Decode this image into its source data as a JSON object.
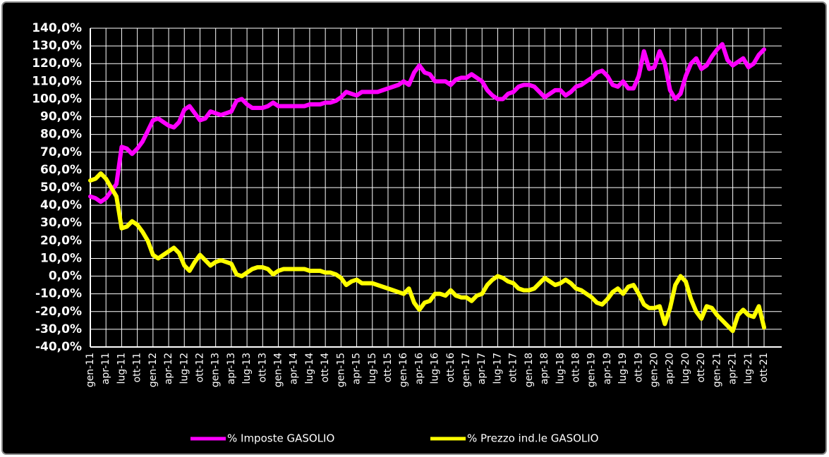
{
  "chart_data": {
    "type": "line",
    "categories": [
      "gen-11",
      null,
      null,
      "apr-11",
      null,
      null,
      "lug-11",
      null,
      null,
      "ott-11",
      null,
      null,
      "gen-12",
      null,
      null,
      "apr-12",
      null,
      null,
      "lug-12",
      null,
      null,
      "ott-12",
      null,
      null,
      "gen-13",
      null,
      null,
      "apr-13",
      null,
      null,
      "lug-13",
      null,
      null,
      "ott-13",
      null,
      null,
      "gen-14",
      null,
      null,
      "apr-14",
      null,
      null,
      "lug-14",
      null,
      null,
      "ott-14",
      null,
      null,
      "gen-15",
      null,
      null,
      "apr-15",
      null,
      null,
      "lug-15",
      null,
      null,
      "ott-15",
      null,
      null,
      "gen-16",
      null,
      null,
      "apr-16",
      null,
      null,
      "lug-16",
      null,
      null,
      "ott-16",
      null,
      null,
      "gen-17",
      null,
      null,
      "apr-17",
      null,
      null,
      "lug-17",
      null,
      null,
      "ott-17",
      null,
      null,
      "gen-18",
      null,
      null,
      "apr-18",
      null,
      null,
      "lug-18",
      null,
      null,
      "ott-18",
      null,
      null,
      "gen-19",
      null,
      null,
      "apr-19",
      null,
      null,
      "lug-19",
      null,
      null,
      "ott-19",
      null,
      null,
      "gen-20",
      null,
      null,
      "apr-20",
      null,
      null,
      "lug-20",
      null,
      null,
      "ott-20",
      null,
      null,
      "gen-21",
      null,
      null,
      "apr-21",
      null,
      null,
      "lug-21",
      null,
      null,
      "ott-21"
    ],
    "series": [
      {
        "name": "% Imposte GASOLIO",
        "color": "#ff00ff",
        "values": [
          45,
          44,
          42,
          44,
          48,
          52,
          73,
          72,
          69,
          72,
          76,
          82,
          88,
          89,
          87,
          85,
          84,
          87,
          94,
          96,
          92,
          88,
          89,
          93,
          92,
          91,
          92,
          93,
          99,
          100,
          97,
          95,
          95,
          95,
          96,
          98,
          96,
          96,
          96,
          96,
          96,
          96,
          97,
          97,
          97,
          98,
          98,
          99,
          101,
          104,
          103,
          102,
          104,
          104,
          104,
          104,
          105,
          106,
          107,
          108,
          110,
          108,
          115,
          119,
          115,
          114,
          110,
          110,
          110,
          108,
          111,
          112,
          112,
          114,
          112,
          110,
          105,
          102,
          100,
          100,
          103,
          104,
          107,
          108,
          108,
          107,
          104,
          101,
          103,
          105,
          105,
          102,
          104,
          107,
          108,
          110,
          112,
          115,
          116,
          113,
          108,
          107,
          110,
          106,
          106,
          113,
          127,
          117,
          118,
          127,
          120,
          105,
          100,
          103,
          113,
          120,
          123,
          117,
          119,
          124,
          128,
          131,
          122,
          119,
          121,
          123,
          118,
          120,
          125,
          128
        ]
      },
      {
        "name": "% Prezzo ind.le GASOLIO",
        "color": "#ffff00",
        "values": [
          54,
          55,
          58,
          55,
          50,
          45,
          27,
          28,
          31,
          29,
          25,
          20,
          12,
          10,
          12,
          14,
          16,
          13,
          6,
          3,
          8,
          12,
          9,
          6,
          8,
          9,
          8,
          7,
          1,
          0,
          2,
          4,
          5,
          5,
          4,
          1,
          3,
          4,
          4,
          4,
          4,
          4,
          3,
          3,
          3,
          2,
          2,
          1,
          -1,
          -5,
          -3,
          -2,
          -4,
          -4,
          -4,
          -5,
          -6,
          -7,
          -8,
          -9,
          -10,
          -7,
          -15,
          -19,
          -15,
          -14,
          -10,
          -10,
          -11,
          -8,
          -11,
          -12,
          -12,
          -14,
          -11,
          -10,
          -5,
          -2,
          0,
          -1,
          -3,
          -4,
          -7,
          -8,
          -8,
          -7,
          -4,
          -1,
          -3,
          -5,
          -4,
          -2,
          -4,
          -7,
          -8,
          -10,
          -12,
          -15,
          -16,
          -13,
          -9,
          -7,
          -10,
          -6,
          -5,
          -10,
          -16,
          -18,
          -18,
          -17,
          -27,
          -18,
          -5,
          0,
          -3,
          -13,
          -20,
          -24,
          -17,
          -18,
          -22,
          -25,
          -28,
          -31,
          -22,
          -19,
          -22,
          -23,
          -17,
          -29
        ]
      }
    ],
    "ylim": [
      -40,
      140
    ],
    "yticks": [
      {
        "value": -40,
        "label": "-40,0%"
      },
      {
        "value": -30,
        "label": "-30,0%"
      },
      {
        "value": -20,
        "label": "-20,0%"
      },
      {
        "value": -10,
        "label": "-10,0%"
      },
      {
        "value": 0,
        "label": "0,0%"
      },
      {
        "value": 10,
        "label": "10,0%"
      },
      {
        "value": 20,
        "label": "20,0%"
      },
      {
        "value": 30,
        "label": "30,0%"
      },
      {
        "value": 40,
        "label": "40,0%"
      },
      {
        "value": 50,
        "label": "50,0%"
      },
      {
        "value": 60,
        "label": "60,0%"
      },
      {
        "value": 70,
        "label": "70,0%"
      },
      {
        "value": 80,
        "label": "80,0%"
      },
      {
        "value": 90,
        "label": "90,0%"
      },
      {
        "value": 100,
        "label": "100,0%"
      },
      {
        "value": 110,
        "label": "110,0%"
      },
      {
        "value": 120,
        "label": "120,0%"
      },
      {
        "value": 130,
        "label": "130,0%"
      },
      {
        "value": 140,
        "label": "140,0%"
      }
    ],
    "grid": true,
    "legend": "bottom"
  }
}
